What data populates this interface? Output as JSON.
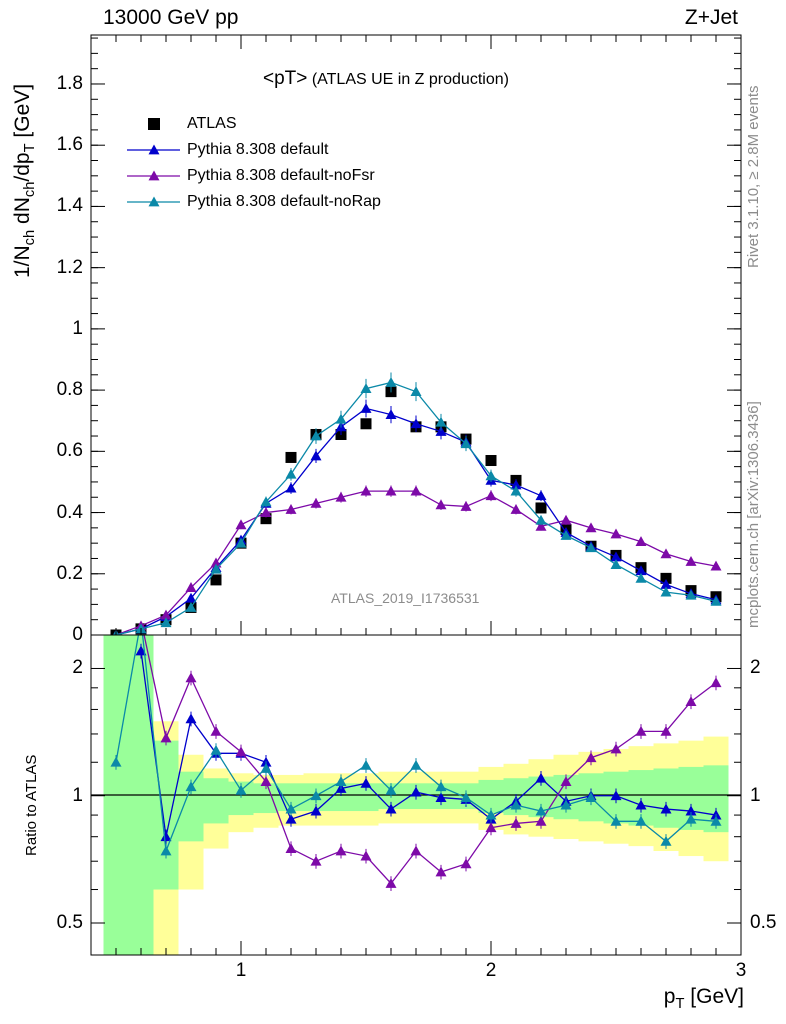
{
  "header": {
    "left": "13000 GeV pp",
    "right": "Z+Jet"
  },
  "plot_title": {
    "main": "<pT>",
    "sub": "(ATLAS UE in Z production)"
  },
  "side_labels": {
    "rivet": "Rivet 3.1.10, ≥ 2.8M events",
    "mcplots": "mcplots.cern.ch [arXiv:1306.3436]"
  },
  "watermark": "ATLAS_2019_I1736531",
  "y_axis_main_label": "1/N_ch dN_ch/dp_T [GeV]",
  "y_axis_ratio_label": "Ratio to ATLAS",
  "x_axis_label": "p_T [GeV]",
  "legend": [
    {
      "label": "ATLAS",
      "color": "#000000",
      "marker": "square"
    },
    {
      "label": "Pythia 8.308 default",
      "color": "#0000cc",
      "marker": "triangle"
    },
    {
      "label": "Pythia 8.308 default-noFsr",
      "color": "#7d0aa8",
      "marker": "triangle"
    },
    {
      "label": "Pythia 8.308 default-noRap",
      "color": "#0b89a8",
      "marker": "triangle"
    }
  ],
  "chart_data": {
    "type": "scatter",
    "x": [
      0.5,
      0.6,
      0.7,
      0.8,
      0.9,
      1.0,
      1.1,
      1.2,
      1.3,
      1.4,
      1.5,
      1.6,
      1.7,
      1.8,
      1.9,
      2.0,
      2.1,
      2.2,
      2.3,
      2.4,
      2.5,
      2.6,
      2.7,
      2.8,
      2.9
    ],
    "xlim": [
      0.4,
      3.0
    ],
    "main_panel": {
      "ylim": [
        0,
        1.96
      ],
      "y_ticks": [
        "0",
        "0.2",
        "0.4",
        "0.6",
        "0.8",
        "1",
        "1.2",
        "1.4",
        "1.6",
        "1.8"
      ],
      "series": [
        {
          "name": "ATLAS",
          "values": [
            0.0,
            0.02,
            0.05,
            0.09,
            0.18,
            0.3,
            0.38,
            0.58,
            0.655,
            0.655,
            0.69,
            0.795,
            0.68,
            0.68,
            0.64,
            0.57,
            0.505,
            0.415,
            0.345,
            0.29,
            0.26,
            0.22,
            0.185,
            0.145,
            0.125
          ]
        },
        {
          "name": "Pythia 8.308 default",
          "values": [
            0.0,
            0.02,
            0.06,
            0.12,
            0.22,
            0.31,
            0.43,
            0.48,
            0.585,
            0.68,
            0.74,
            0.72,
            0.69,
            0.665,
            0.63,
            0.505,
            0.49,
            0.455,
            0.335,
            0.29,
            0.255,
            0.21,
            0.165,
            0.135,
            0.115
          ]
        },
        {
          "name": "Pythia 8.308 default-noFsr",
          "values": [
            0.0,
            0.03,
            0.065,
            0.155,
            0.235,
            0.36,
            0.4,
            0.41,
            0.43,
            0.45,
            0.47,
            0.47,
            0.47,
            0.425,
            0.42,
            0.455,
            0.41,
            0.355,
            0.375,
            0.35,
            0.33,
            0.305,
            0.265,
            0.24,
            0.225
          ]
        },
        {
          "name": "Pythia 8.308 default-noRap",
          "values": [
            0.0,
            0.02,
            0.04,
            0.09,
            0.215,
            0.3,
            0.435,
            0.525,
            0.65,
            0.705,
            0.805,
            0.825,
            0.795,
            0.695,
            0.625,
            0.52,
            0.47,
            0.375,
            0.325,
            0.285,
            0.23,
            0.185,
            0.14,
            0.13,
            0.11
          ]
        }
      ]
    },
    "ratio_panel": {
      "ylim": [
        0.42,
        2.4
      ],
      "log_scale": true,
      "y_ticks": [
        "0.5",
        "1",
        "2"
      ],
      "band_total_lo": [
        0.3,
        0.3,
        0.4,
        0.6,
        0.75,
        0.82,
        0.84,
        0.85,
        0.85,
        0.85,
        0.85,
        0.86,
        0.86,
        0.86,
        0.86,
        0.83,
        0.81,
        0.8,
        0.79,
        0.78,
        0.77,
        0.76,
        0.74,
        0.72,
        0.7
      ],
      "band_total_hi": [
        3.0,
        3.0,
        1.5,
        1.25,
        1.16,
        1.13,
        1.12,
        1.12,
        1.13,
        1.13,
        1.13,
        1.14,
        1.14,
        1.14,
        1.14,
        1.17,
        1.19,
        1.22,
        1.25,
        1.27,
        1.29,
        1.31,
        1.33,
        1.35,
        1.38
      ],
      "band_stat_lo": [
        0.3,
        0.3,
        0.6,
        0.78,
        0.86,
        0.9,
        0.91,
        0.92,
        0.92,
        0.92,
        0.92,
        0.93,
        0.93,
        0.93,
        0.93,
        0.91,
        0.9,
        0.89,
        0.88,
        0.87,
        0.86,
        0.85,
        0.84,
        0.83,
        0.82
      ],
      "band_stat_hi": [
        3.0,
        3.0,
        1.35,
        1.14,
        1.1,
        1.08,
        1.07,
        1.07,
        1.07,
        1.07,
        1.07,
        1.07,
        1.07,
        1.07,
        1.07,
        1.09,
        1.1,
        1.11,
        1.12,
        1.13,
        1.14,
        1.15,
        1.16,
        1.17,
        1.18
      ],
      "series": [
        {
          "name": "Pythia 8.308 default",
          "values": [
            null,
            2.2,
            0.8,
            1.52,
            1.26,
            1.26,
            1.2,
            0.88,
            0.92,
            1.04,
            1.07,
            0.93,
            1.02,
            0.99,
            0.98,
            0.88,
            0.97,
            1.1,
            0.97,
            1.0,
            1.0,
            0.95,
            0.93,
            0.92,
            0.9
          ]
        },
        {
          "name": "Pythia 8.308 default-noFsr",
          "values": [
            null,
            2.6,
            1.37,
            1.9,
            1.42,
            1.27,
            1.08,
            0.75,
            0.7,
            0.74,
            0.72,
            0.62,
            0.74,
            0.66,
            0.69,
            0.84,
            0.86,
            0.87,
            1.08,
            1.23,
            1.29,
            1.42,
            1.42,
            1.67,
            1.85
          ]
        },
        {
          "name": "Pythia 8.308 default-noRap",
          "values": [
            1.2,
            2.6,
            0.74,
            1.05,
            1.28,
            1.03,
            1.16,
            0.93,
            1.0,
            1.08,
            1.18,
            1.03,
            1.18,
            1.05,
            0.99,
            0.9,
            0.95,
            0.92,
            0.95,
            0.99,
            0.87,
            0.87,
            0.78,
            0.88,
            0.87
          ]
        }
      ]
    }
  }
}
